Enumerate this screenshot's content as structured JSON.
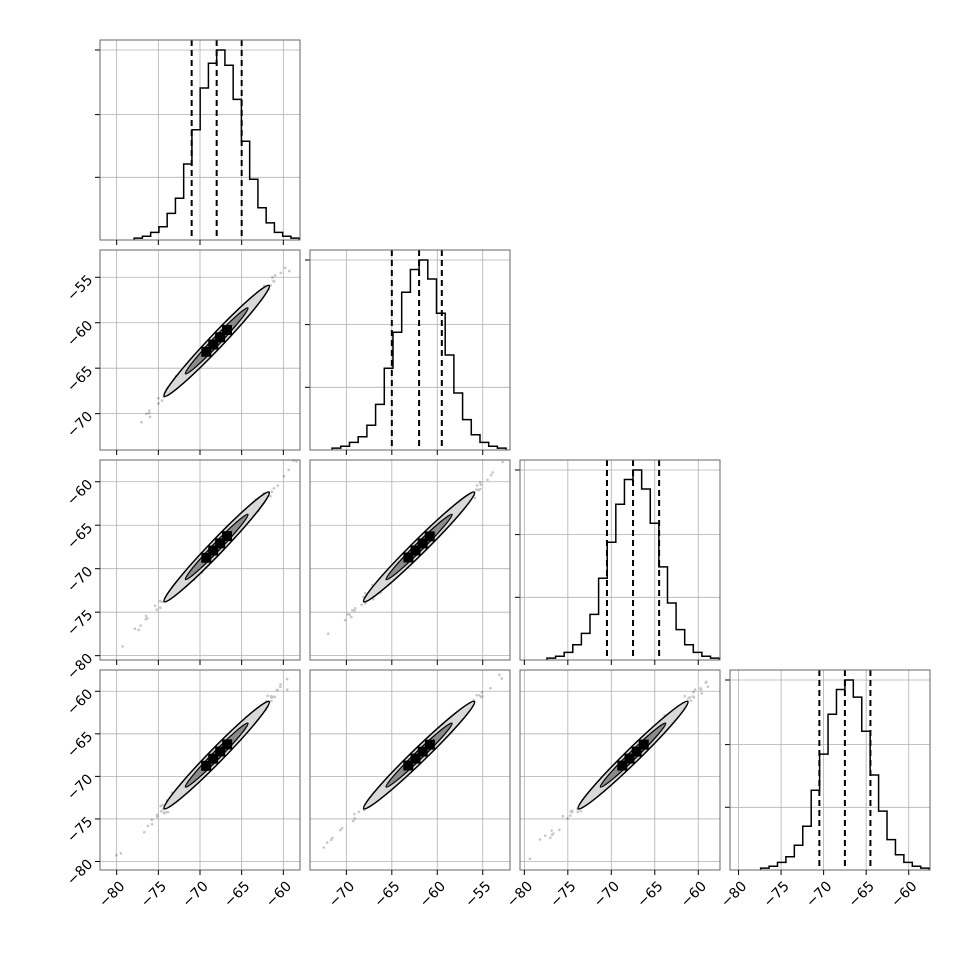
{
  "chart_data": {
    "type": "corner",
    "n_params": 4,
    "grid": true,
    "params": [
      {
        "range": [
          -82,
          -58
        ],
        "ticks": [
          -80,
          -75,
          -70,
          -65,
          -60
        ],
        "median": -68.0,
        "q16": -71.0,
        "q84": -65.0,
        "sigma": 3.0
      },
      {
        "range": [
          -74,
          -52
        ],
        "ticks": [
          -70,
          -65,
          -60,
          -55
        ],
        "median": -62.0,
        "q16": -65.0,
        "q84": -59.5,
        "sigma": 2.9
      },
      {
        "range": [
          -80.5,
          -57.5
        ],
        "ticks": [
          -80,
          -75,
          -70,
          -65,
          -60
        ],
        "median": -67.5,
        "q16": -70.5,
        "q84": -64.5,
        "sigma": 3.0
      },
      {
        "range": [
          -81,
          -57.5
        ],
        "ticks": [
          -80,
          -75,
          -70,
          -65,
          -60
        ],
        "median": -67.5,
        "q16": -70.5,
        "q84": -64.5,
        "sigma": 3.0
      }
    ],
    "x_tick_labels": [
      [
        "−80",
        "−75",
        "−70",
        "−65",
        "−60"
      ],
      [
        "−70",
        "−65",
        "−60",
        "−55"
      ],
      [
        "−80",
        "−75",
        "−70",
        "−65",
        "−60"
      ],
      [
        "−80",
        "−75",
        "−70",
        "−65",
        "−60"
      ]
    ],
    "y_tick_labels": {
      "row1": [
        "−55",
        "−60",
        "−65",
        "−70"
      ],
      "row2": [
        "−60",
        "−65",
        "−70",
        "−75",
        "−80"
      ],
      "row3": [
        "−60",
        "−65",
        "−70",
        "−75",
        "−80"
      ]
    },
    "hist_counts": [
      [
        0.01,
        0.02,
        0.04,
        0.07,
        0.14,
        0.22,
        0.4,
        0.58,
        0.8,
        0.93,
        1.0,
        0.92,
        0.74,
        0.52,
        0.32,
        0.17,
        0.09,
        0.04,
        0.02,
        0.01
      ],
      [
        0.01,
        0.02,
        0.04,
        0.07,
        0.13,
        0.24,
        0.43,
        0.62,
        0.83,
        0.95,
        1.0,
        0.9,
        0.72,
        0.5,
        0.3,
        0.16,
        0.08,
        0.04,
        0.02,
        0.01
      ],
      [
        0.01,
        0.02,
        0.04,
        0.08,
        0.14,
        0.24,
        0.43,
        0.62,
        0.82,
        0.95,
        1.0,
        0.9,
        0.72,
        0.49,
        0.3,
        0.16,
        0.08,
        0.04,
        0.02,
        0.01
      ],
      [
        0.01,
        0.02,
        0.04,
        0.07,
        0.13,
        0.23,
        0.42,
        0.61,
        0.82,
        0.95,
        1.0,
        0.91,
        0.73,
        0.5,
        0.31,
        0.16,
        0.08,
        0.04,
        0.02,
        0.01
      ]
    ],
    "hist_y_ticks": [
      0.33,
      0.66,
      1.0
    ]
  }
}
